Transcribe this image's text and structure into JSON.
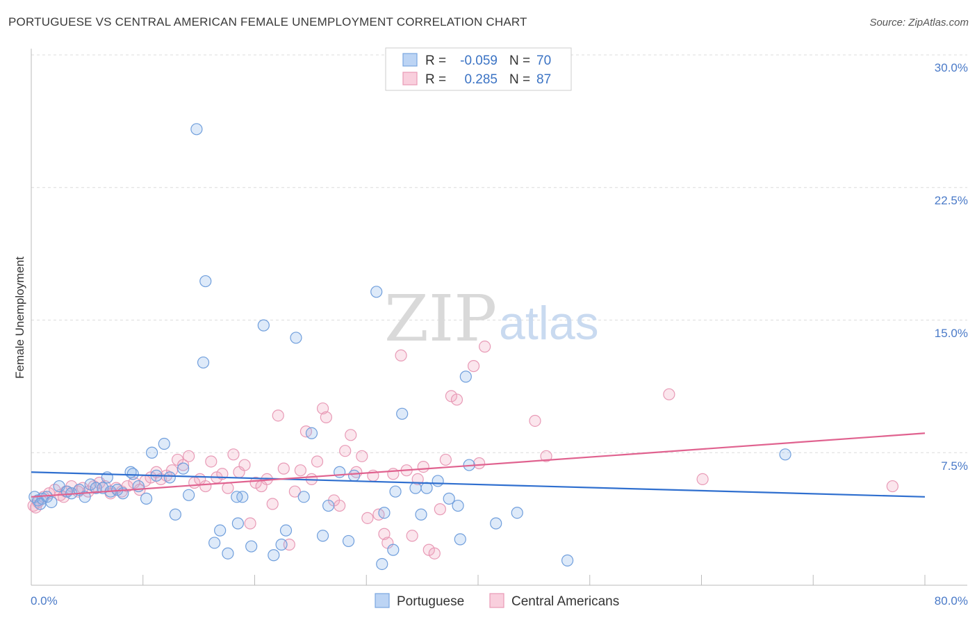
{
  "title": "PORTUGUESE VS CENTRAL AMERICAN FEMALE UNEMPLOYMENT CORRELATION CHART",
  "source": "Source: ZipAtlas.com",
  "watermark": {
    "zip": "ZIP",
    "atlas": "atlas"
  },
  "legend": {
    "rows": [
      {
        "r_label": "R =",
        "r_value": "-0.059",
        "n_label": "N =",
        "n_value": "70"
      },
      {
        "r_label": "R =",
        "r_value": "0.285",
        "n_label": "N =",
        "n_value": "87"
      }
    ]
  },
  "bottom_legend": [
    "Portuguese",
    "Central Americans"
  ],
  "chart_data": {
    "type": "scatter",
    "title": "PORTUGUESE VS CENTRAL AMERICAN FEMALE UNEMPLOYMENT CORRELATION CHART",
    "xlabel": "",
    "ylabel": "Female Unemployment",
    "xlim": [
      0,
      80
    ],
    "ylim": [
      0,
      30
    ],
    "x_tick_labels": [
      "0.0%",
      "80.0%"
    ],
    "y_ticks": [
      7.5,
      15.0,
      22.5,
      30.0
    ],
    "y_tick_labels": [
      "7.5%",
      "15.0%",
      "22.5%",
      "30.0%"
    ],
    "grid": "horizontal dashed",
    "legend_position": "top-center",
    "colors": {
      "portuguese": "#8ab4e8",
      "central_americans": "#f2a7c0",
      "portuguese_line": "#2f6fcf",
      "central_line": "#e0628f"
    },
    "series": [
      {
        "name": "Portuguese",
        "r": -0.059,
        "n": 70,
        "trend": [
          [
            0,
            6.4
          ],
          [
            80,
            5.0
          ]
        ],
        "points": [
          [
            0.3,
            5.0
          ],
          [
            0.6,
            4.8
          ],
          [
            1.0,
            4.9
          ],
          [
            1.4,
            5.0
          ],
          [
            1.8,
            4.7
          ],
          [
            2.5,
            5.6
          ],
          [
            3.2,
            5.3
          ],
          [
            3.6,
            5.2
          ],
          [
            4.3,
            5.4
          ],
          [
            4.8,
            5.0
          ],
          [
            5.3,
            5.7
          ],
          [
            5.8,
            5.5
          ],
          [
            6.4,
            5.5
          ],
          [
            6.8,
            6.1
          ],
          [
            7.1,
            5.3
          ],
          [
            7.7,
            5.4
          ],
          [
            8.2,
            5.2
          ],
          [
            8.9,
            6.4
          ],
          [
            9.1,
            6.3
          ],
          [
            9.6,
            5.6
          ],
          [
            10.3,
            4.9
          ],
          [
            10.8,
            7.5
          ],
          [
            11.2,
            6.2
          ],
          [
            11.9,
            8.0
          ],
          [
            12.4,
            6.1
          ],
          [
            12.9,
            4.0
          ],
          [
            13.6,
            6.6
          ],
          [
            14.1,
            5.1
          ],
          [
            14.8,
            25.8
          ],
          [
            15.4,
            12.6
          ],
          [
            15.6,
            17.2
          ],
          [
            16.4,
            2.4
          ],
          [
            16.9,
            3.1
          ],
          [
            17.6,
            1.8
          ],
          [
            18.9,
            5.0
          ],
          [
            18.5,
            3.5
          ],
          [
            18.4,
            5.0
          ],
          [
            19.7,
            2.2
          ],
          [
            20.8,
            14.7
          ],
          [
            21.7,
            1.7
          ],
          [
            22.4,
            2.3
          ],
          [
            22.8,
            3.1
          ],
          [
            23.7,
            14.0
          ],
          [
            24.4,
            5.0
          ],
          [
            25.1,
            8.6
          ],
          [
            26.1,
            2.8
          ],
          [
            26.6,
            4.5
          ],
          [
            27.6,
            6.4
          ],
          [
            28.4,
            2.5
          ],
          [
            28.9,
            6.2
          ],
          [
            30.9,
            16.6
          ],
          [
            31.4,
            1.2
          ],
          [
            31.6,
            4.1
          ],
          [
            32.4,
            2.0
          ],
          [
            32.6,
            5.3
          ],
          [
            33.2,
            9.7
          ],
          [
            34.4,
            5.5
          ],
          [
            34.9,
            4.0
          ],
          [
            35.4,
            5.5
          ],
          [
            36.4,
            5.9
          ],
          [
            37.4,
            4.9
          ],
          [
            38.2,
            4.5
          ],
          [
            38.4,
            2.6
          ],
          [
            38.9,
            11.8
          ],
          [
            39.2,
            6.8
          ],
          [
            41.6,
            3.5
          ],
          [
            43.5,
            4.1
          ],
          [
            48.0,
            1.4
          ],
          [
            67.5,
            7.4
          ],
          [
            0.8,
            4.6
          ]
        ]
      },
      {
        "name": "Central Americans",
        "r": 0.285,
        "n": 87,
        "trend": [
          [
            0,
            5.0
          ],
          [
            80,
            8.6
          ]
        ],
        "points": [
          [
            0.2,
            4.5
          ],
          [
            0.6,
            4.7
          ],
          [
            1.1,
            5.0
          ],
          [
            1.6,
            5.2
          ],
          [
            2.1,
            5.4
          ],
          [
            2.6,
            5.1
          ],
          [
            3.1,
            5.3
          ],
          [
            3.6,
            5.6
          ],
          [
            4.2,
            5.3
          ],
          [
            4.6,
            5.5
          ],
          [
            5.1,
            5.3
          ],
          [
            5.6,
            5.6
          ],
          [
            6.1,
            5.8
          ],
          [
            6.6,
            5.6
          ],
          [
            7.1,
            5.2
          ],
          [
            7.6,
            5.5
          ],
          [
            8.1,
            5.3
          ],
          [
            8.6,
            5.6
          ],
          [
            9.2,
            5.8
          ],
          [
            9.7,
            5.4
          ],
          [
            10.2,
            5.9
          ],
          [
            10.7,
            6.1
          ],
          [
            11.2,
            6.4
          ],
          [
            11.6,
            6.0
          ],
          [
            12.1,
            6.2
          ],
          [
            12.6,
            6.5
          ],
          [
            13.1,
            7.1
          ],
          [
            13.6,
            6.8
          ],
          [
            14.1,
            7.3
          ],
          [
            14.6,
            5.8
          ],
          [
            15.1,
            6.0
          ],
          [
            15.6,
            5.6
          ],
          [
            16.1,
            7.0
          ],
          [
            16.6,
            6.1
          ],
          [
            17.1,
            6.3
          ],
          [
            17.6,
            5.5
          ],
          [
            18.1,
            7.4
          ],
          [
            18.6,
            6.4
          ],
          [
            19.1,
            6.8
          ],
          [
            19.6,
            3.5
          ],
          [
            20.1,
            5.8
          ],
          [
            20.6,
            5.6
          ],
          [
            21.1,
            6.0
          ],
          [
            21.6,
            4.6
          ],
          [
            22.1,
            9.6
          ],
          [
            22.6,
            6.6
          ],
          [
            23.1,
            2.3
          ],
          [
            23.6,
            5.3
          ],
          [
            24.1,
            6.5
          ],
          [
            24.6,
            8.7
          ],
          [
            25.1,
            6.0
          ],
          [
            25.6,
            7.0
          ],
          [
            26.1,
            10.0
          ],
          [
            26.4,
            9.5
          ],
          [
            27.1,
            4.8
          ],
          [
            27.6,
            4.5
          ],
          [
            28.1,
            7.6
          ],
          [
            28.6,
            8.5
          ],
          [
            29.1,
            6.4
          ],
          [
            29.6,
            7.3
          ],
          [
            30.1,
            3.8
          ],
          [
            30.6,
            6.2
          ],
          [
            31.1,
            4.0
          ],
          [
            31.6,
            2.9
          ],
          [
            31.9,
            2.4
          ],
          [
            32.4,
            6.3
          ],
          [
            33.1,
            13.0
          ],
          [
            33.6,
            6.5
          ],
          [
            34.1,
            2.8
          ],
          [
            34.6,
            6.0
          ],
          [
            35.1,
            6.7
          ],
          [
            35.6,
            2.0
          ],
          [
            36.1,
            1.8
          ],
          [
            36.6,
            4.3
          ],
          [
            37.1,
            7.1
          ],
          [
            37.6,
            10.7
          ],
          [
            38.1,
            10.5
          ],
          [
            39.6,
            12.4
          ],
          [
            40.1,
            6.9
          ],
          [
            40.6,
            13.5
          ],
          [
            45.1,
            9.3
          ],
          [
            46.1,
            7.3
          ],
          [
            57.1,
            10.8
          ],
          [
            60.1,
            6.0
          ],
          [
            77.1,
            5.6
          ],
          [
            0.4,
            4.4
          ],
          [
            2.9,
            5.0
          ]
        ]
      }
    ]
  }
}
